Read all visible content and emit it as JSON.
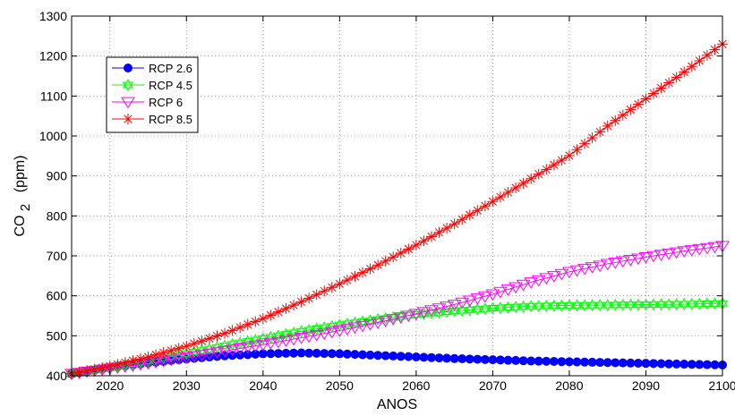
{
  "chart_data": {
    "type": "line",
    "title": "",
    "xlabel": "ANOS",
    "ylabel_main": "CO",
    "ylabel_sub": "2",
    "ylabel_unit": "(ppm)",
    "xlim": [
      2015,
      2100
    ],
    "ylim": [
      400,
      1300
    ],
    "xticks": [
      2020,
      2030,
      2040,
      2050,
      2060,
      2070,
      2080,
      2090,
      2100
    ],
    "yticks": [
      400,
      500,
      600,
      700,
      800,
      900,
      1000,
      1100,
      1200,
      1300
    ],
    "grid": true,
    "legend_position": "top-left",
    "x": [
      2015,
      2020,
      2025,
      2030,
      2035,
      2040,
      2045,
      2050,
      2055,
      2060,
      2065,
      2070,
      2075,
      2080,
      2085,
      2090,
      2095,
      2100
    ],
    "series": [
      {
        "name": "RCP 2.6",
        "color": "#0000ff",
        "marker": "circle",
        "values": [
          405,
          420,
          432,
          442,
          450,
          455,
          457,
          455,
          451,
          447,
          443,
          440,
          437,
          435,
          433,
          431,
          429,
          427
        ]
      },
      {
        "name": "RCP 4.5",
        "color": "#00ff00",
        "marker": "hexagram",
        "values": [
          405,
          420,
          437,
          455,
          475,
          493,
          511,
          527,
          541,
          553,
          562,
          569,
          574,
          576,
          577,
          578,
          579,
          581
        ]
      },
      {
        "name": "RCP 6",
        "color": "#ff00ff",
        "marker": "triangle-down",
        "values": [
          405,
          418,
          431,
          446,
          462,
          478,
          495,
          513,
          533,
          555,
          578,
          604,
          634,
          660,
          680,
          697,
          712,
          725
        ]
      },
      {
        "name": "RCP 8.5",
        "color": "#ff0000",
        "marker": "asterisk",
        "values": [
          405,
          424,
          447,
          474,
          506,
          543,
          585,
          630,
          677,
          727,
          780,
          836,
          893,
          951,
          1025,
          1093,
          1160,
          1230
        ]
      }
    ]
  }
}
